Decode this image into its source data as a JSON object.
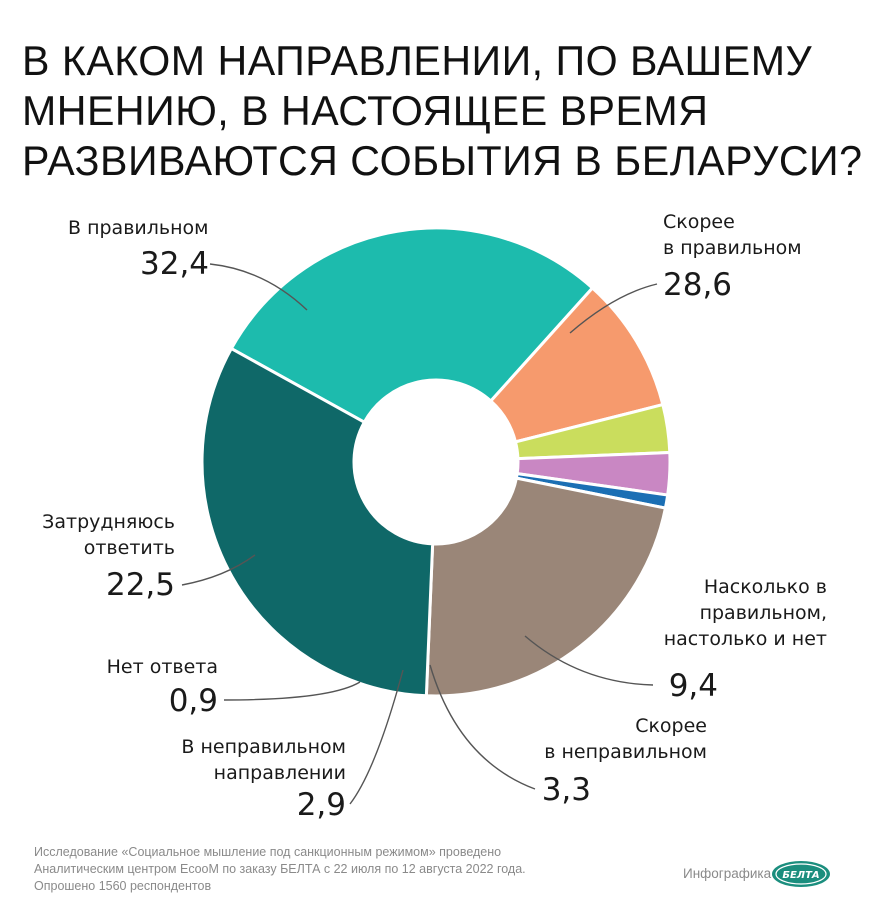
{
  "title_lines": [
    "В КАКОМ НАПРАВЛЕНИИ, ПО ВАШЕМУ",
    "МНЕНИЮ, В НАСТОЯЩЕЕ ВРЕМЯ",
    "РАЗВИВАЮТСЯ СОБЫТИЯ В БЕЛАРУСИ?"
  ],
  "chart_data": {
    "type": "pie",
    "variant": "donut",
    "title": "В КАКОМ НАПРАВЛЕНИИ, ПО ВАШЕМУ МНЕНИЮ, В НАСТОЯЩЕЕ ВРЕМЯ РАЗВИВАЮТСЯ СОБЫТИЯ В БЕЛАРУСИ?",
    "slices": [
      {
        "label": "Скорее в правильном",
        "label_lines": [
          "Скорее",
          "в правильном"
        ],
        "value": 28.6,
        "value_label": "28,6",
        "color": "#1dbbad"
      },
      {
        "label": "Насколько в правильном, настолько и нет",
        "label_lines": [
          "Насколько в",
          "правильном,",
          "настолько и нет"
        ],
        "value": 9.4,
        "value_label": "9,4",
        "color": "#f69a6d"
      },
      {
        "label": "Скорее в неправильном",
        "label_lines": [
          "Скорее",
          "в неправильном"
        ],
        "value": 3.3,
        "value_label": "3,3",
        "color": "#cadd5d"
      },
      {
        "label": "В неправильном направлении",
        "label_lines": [
          "В неправильном",
          "направлении"
        ],
        "value": 2.9,
        "value_label": "2,9",
        "color": "#c987c3"
      },
      {
        "label": "Нет ответа",
        "label_lines": [
          "Нет ответа"
        ],
        "value": 0.9,
        "value_label": "0,9",
        "color": "#1b6fb4"
      },
      {
        "label": "Затрудняюсь ответить",
        "label_lines": [
          "Затрудняюсь",
          "ответить"
        ],
        "value": 22.5,
        "value_label": "22,5",
        "color": "#9a8678"
      },
      {
        "label": "В правильном",
        "label_lines": [
          "В правильном"
        ],
        "value": 32.4,
        "value_label": "32,4",
        "color": "#0f6868"
      }
    ]
  },
  "footnote_lines": [
    "Исследование «Социальное мышление под санкционным режимом» проведено",
    "Аналитическим центром EcooM по заказу БЕЛТА с 22 июля по 12 августа 2022 года.",
    "Опрошено 1560 респондентов"
  ],
  "credit": "Инфографика",
  "logo_text": "БЕЛТА",
  "colors": {
    "leader_line": "#555555",
    "logo": "#1b8e7e"
  }
}
